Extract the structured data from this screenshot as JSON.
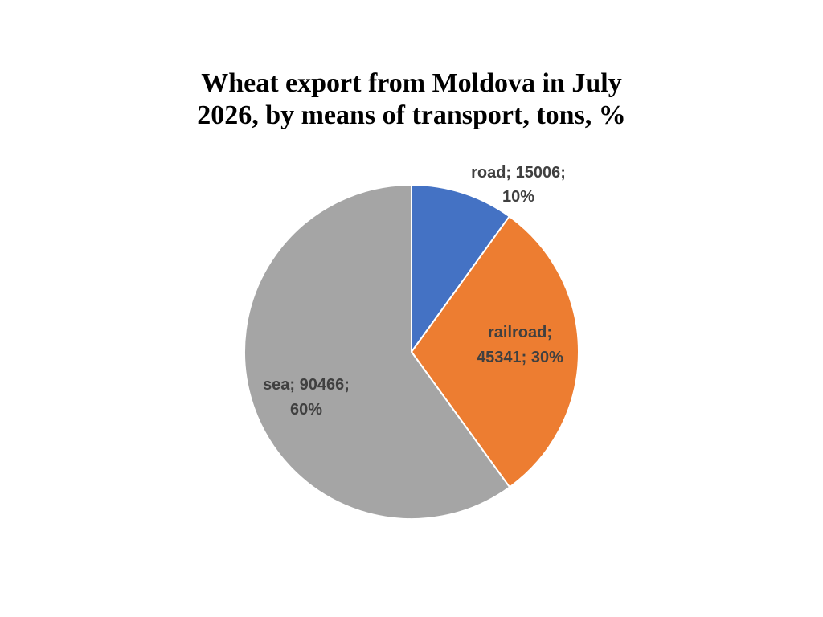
{
  "chart_data": {
    "type": "pie",
    "title_lines": [
      "Wheat export from Moldova in July",
      "2026, by means of transport, tons, %"
    ],
    "slices": [
      {
        "name": "road",
        "value": 15006,
        "percent": "10%",
        "color": "#4472C4",
        "label_lines": [
          "road; 15006;",
          "10%"
        ]
      },
      {
        "name": "railroad",
        "value": 45341,
        "percent": "30%",
        "color": "#ED7D31",
        "label_lines": [
          "railroad;",
          "45341; 30%"
        ]
      },
      {
        "name": "sea",
        "value": 90466,
        "percent": "60%",
        "color": "#A5A5A5",
        "label_lines": [
          "sea; 90466;",
          "60%"
        ]
      }
    ]
  }
}
